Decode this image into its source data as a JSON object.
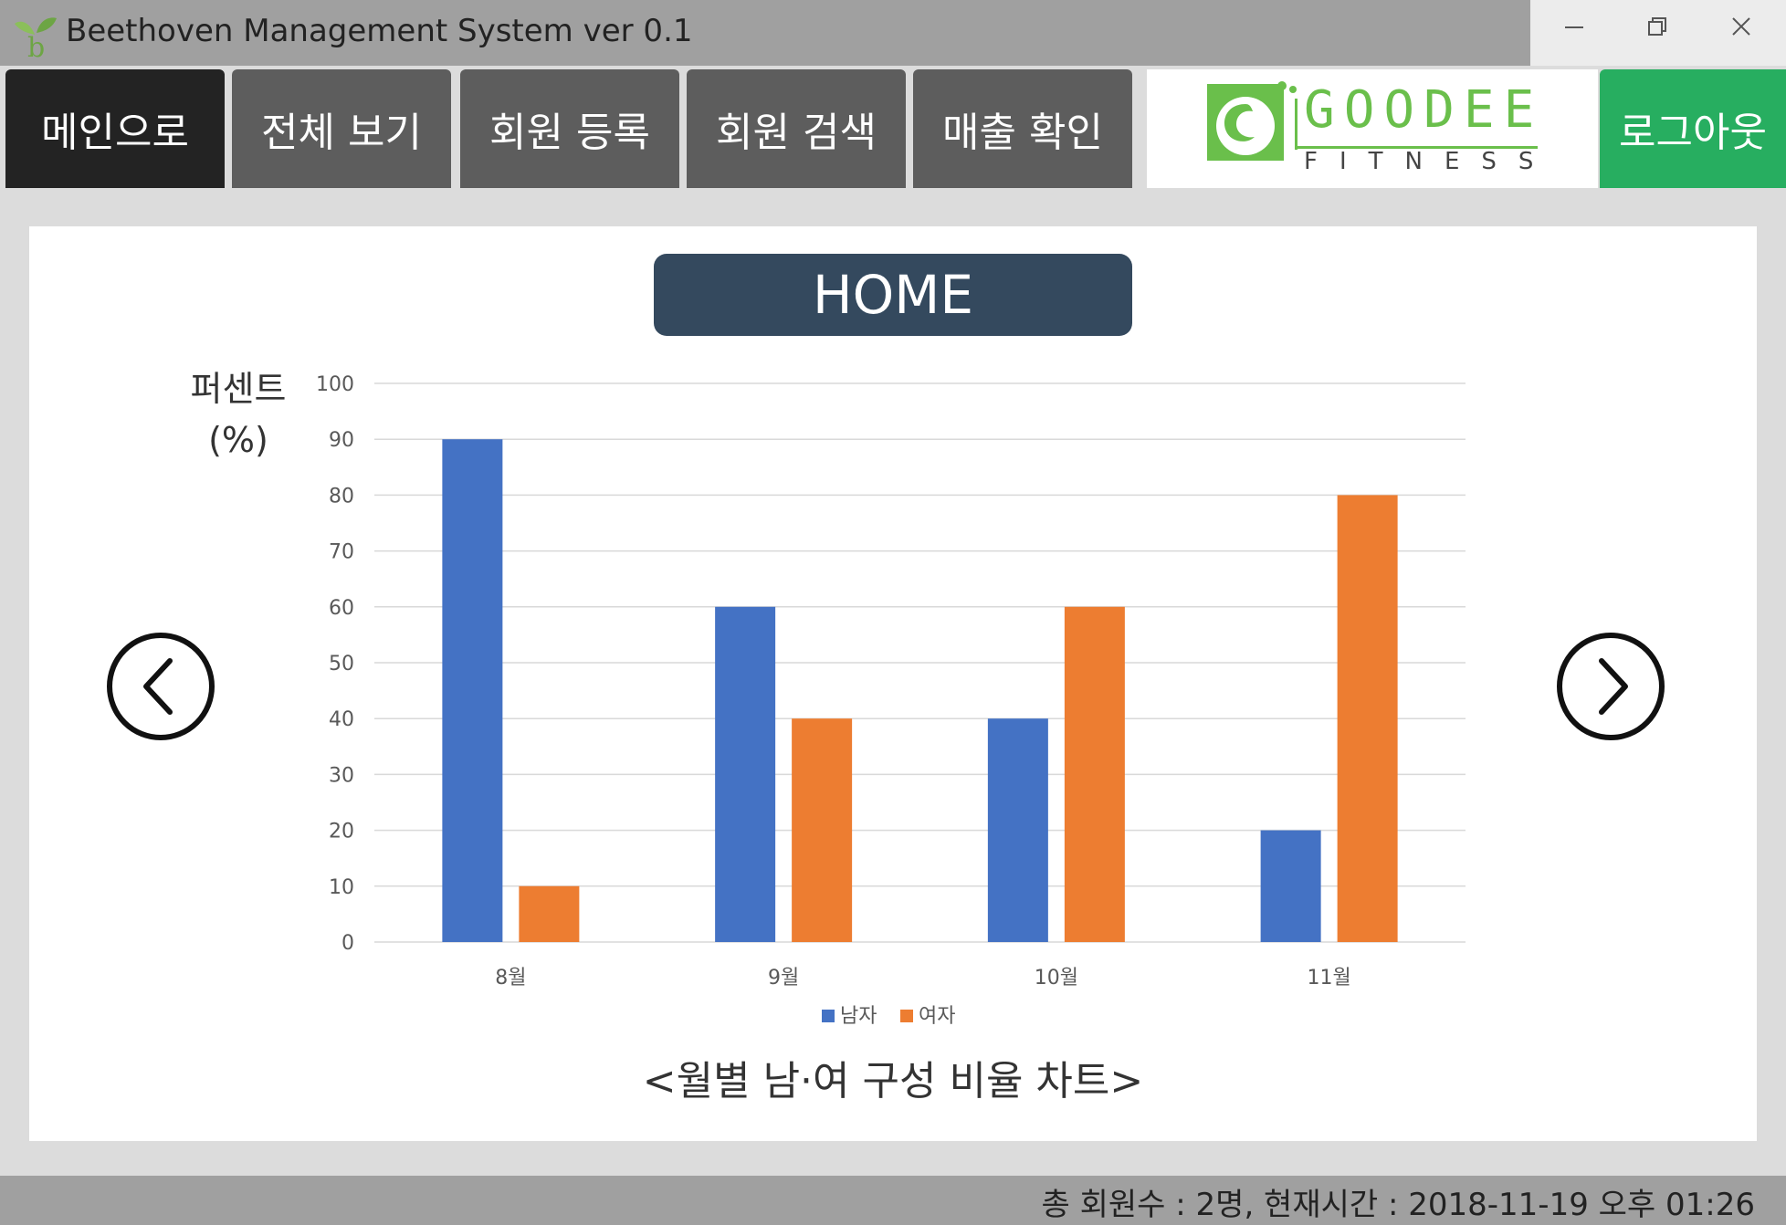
{
  "window": {
    "title": "Beethoven Management System ver 0.1"
  },
  "nav": {
    "items": [
      {
        "label": "메인으로",
        "active": true
      },
      {
        "label": "전체 보기",
        "active": false
      },
      {
        "label": "회원 등록",
        "active": false
      },
      {
        "label": "회원 검색",
        "active": false
      },
      {
        "label": "매출 확인",
        "active": false
      }
    ],
    "logout_label": "로그아웃"
  },
  "logo": {
    "line1": "GOODEE",
    "line2": "FITNESS"
  },
  "main": {
    "title": "HOME",
    "caption": "<월별 남·여 구성 비율 차트>",
    "ylabel": "퍼센트\n(%)"
  },
  "colors": {
    "accent_nav": "#5d5d5d",
    "active_nav": "#232323",
    "logout": "#27ae60",
    "title_box": "#34495e",
    "series_male": "#4472c4",
    "series_female": "#ed7d31",
    "logo_green": "#5cb85c"
  },
  "icons": {
    "app": "sprout-b-icon",
    "prev": "chevron-left-circle-icon",
    "next": "chevron-right-circle-icon",
    "minimize": "minimize-icon",
    "restore": "restore-icon",
    "close": "close-icon"
  },
  "chart_data": {
    "type": "bar",
    "categories": [
      "8월",
      "9월",
      "10월",
      "11월"
    ],
    "series": [
      {
        "name": "남자",
        "values": [
          90,
          60,
          40,
          20
        ]
      },
      {
        "name": "여자",
        "values": [
          10,
          40,
          60,
          80
        ]
      }
    ],
    "ylim": [
      0,
      100
    ],
    "yticks": [
      0,
      10,
      20,
      30,
      40,
      50,
      60,
      70,
      80,
      90,
      100
    ],
    "grid": true,
    "legend": "bottom-center"
  },
  "status": {
    "text": "총 회원수 : 2명, 현재시간 : 2018-11-19 오후 01:26"
  }
}
